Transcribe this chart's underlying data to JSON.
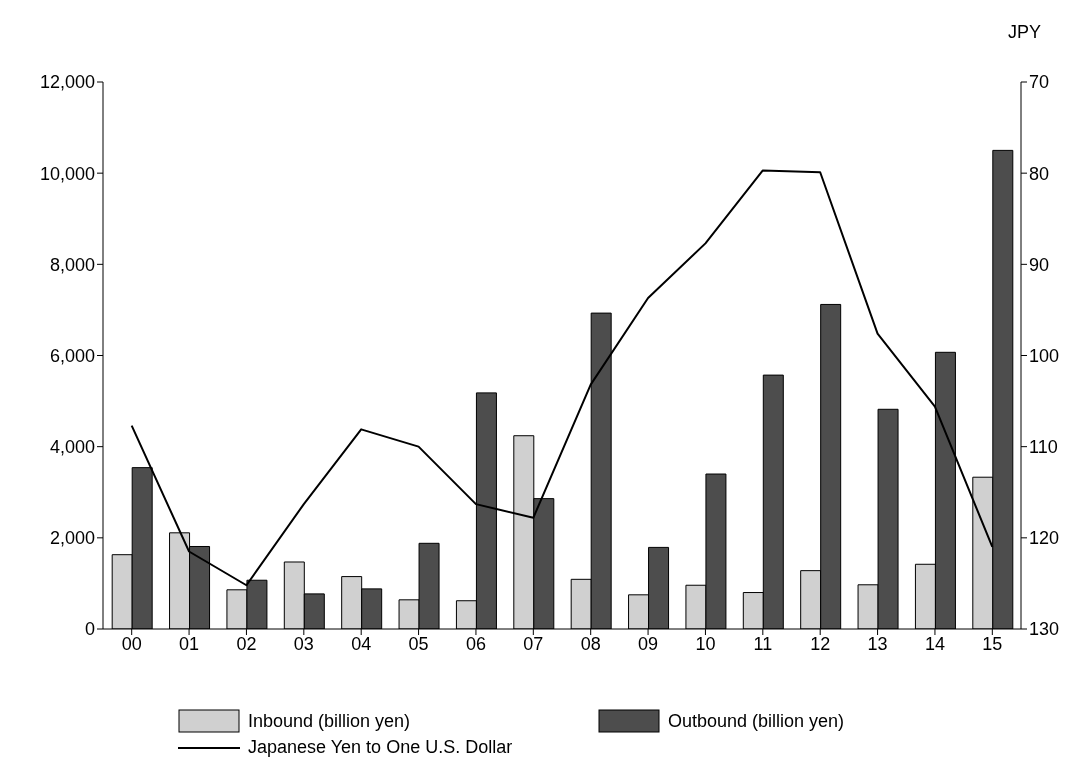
{
  "chart_data": {
    "type": "bar",
    "y2label": "JPY",
    "categories": [
      "00",
      "01",
      "02",
      "03",
      "04",
      "05",
      "06",
      "07",
      "08",
      "09",
      "10",
      "11",
      "12",
      "13",
      "14",
      "15"
    ],
    "series": [
      {
        "name": "Inbound (billion yen)",
        "color": "#d0d0d0",
        "values": [
          1630,
          2110,
          860,
          1470,
          1150,
          640,
          620,
          4240,
          1090,
          750,
          960,
          800,
          1280,
          970,
          1420,
          3330
        ]
      },
      {
        "name": "Outbound (billion yen)",
        "color": "#4d4d4d",
        "values": [
          3540,
          1810,
          1070,
          770,
          880,
          1880,
          5180,
          2860,
          6930,
          1790,
          3400,
          5570,
          7120,
          4820,
          6070,
          10500
        ]
      },
      {
        "name": "Japanese Yen to One U.S. Dollar",
        "type": "line",
        "axis": "y2",
        "color": "#000000",
        "values": [
          107.7,
          121.5,
          125.2,
          116.3,
          108.1,
          110.0,
          116.3,
          117.8,
          103.2,
          93.7,
          87.7,
          79.7,
          79.9,
          97.6,
          105.6,
          121.0
        ]
      }
    ],
    "ylim": [
      0,
      12000
    ],
    "yticks": [
      0,
      {
        "value": 2000,
        "label": "2,000"
      },
      {
        "value": 4000,
        "label": "4,000"
      },
      {
        "value": 6000,
        "label": "6,000"
      },
      {
        "value": 8000,
        "label": "8,000"
      },
      {
        "value": 10000,
        "label": "10,000"
      },
      {
        "value": 12000,
        "label": "12,000"
      }
    ],
    "y2lim": [
      130,
      70
    ],
    "y2ticks": [
      70,
      80,
      90,
      100,
      110,
      120,
      130
    ],
    "legend": "bottom",
    "line_style": "solid",
    "marker": "none"
  }
}
